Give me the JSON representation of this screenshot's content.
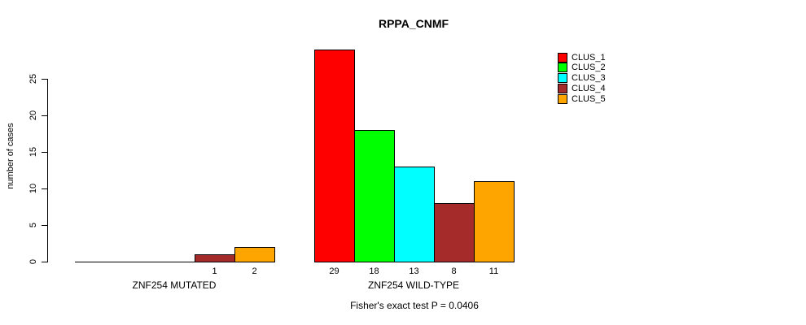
{
  "chart_data": {
    "type": "bar",
    "title": "RPPA_CNMF",
    "ylabel": "number of cases",
    "xlabel": "",
    "ylim": [
      0,
      29
    ],
    "y_ticks": [
      0,
      5,
      10,
      15,
      20,
      25
    ],
    "grid": false,
    "legend_position": "top-right",
    "categories": [
      "CLUS_1",
      "CLUS_2",
      "CLUS_3",
      "CLUS_4",
      "CLUS_5"
    ],
    "legend": [
      {
        "label": "CLUS_1",
        "color": "#ff0000"
      },
      {
        "label": "CLUS_2",
        "color": "#00ff00"
      },
      {
        "label": "CLUS_3",
        "color": "#00ffff"
      },
      {
        "label": "CLUS_4",
        "color": "#a52a2a"
      },
      {
        "label": "CLUS_5",
        "color": "#ffa500"
      }
    ],
    "groups": [
      {
        "label": "ZNF254 MUTATED",
        "values": [
          0,
          0,
          0,
          1,
          2
        ],
        "bar_labels": [
          "",
          "",
          "",
          "1",
          "2"
        ]
      },
      {
        "label": "ZNF254 WILD-TYPE",
        "values": [
          29,
          18,
          13,
          8,
          11
        ],
        "bar_labels": [
          "29",
          "18",
          "13",
          "8",
          "11"
        ]
      }
    ],
    "annotation": "Fisher's exact test P = 0.0406"
  }
}
